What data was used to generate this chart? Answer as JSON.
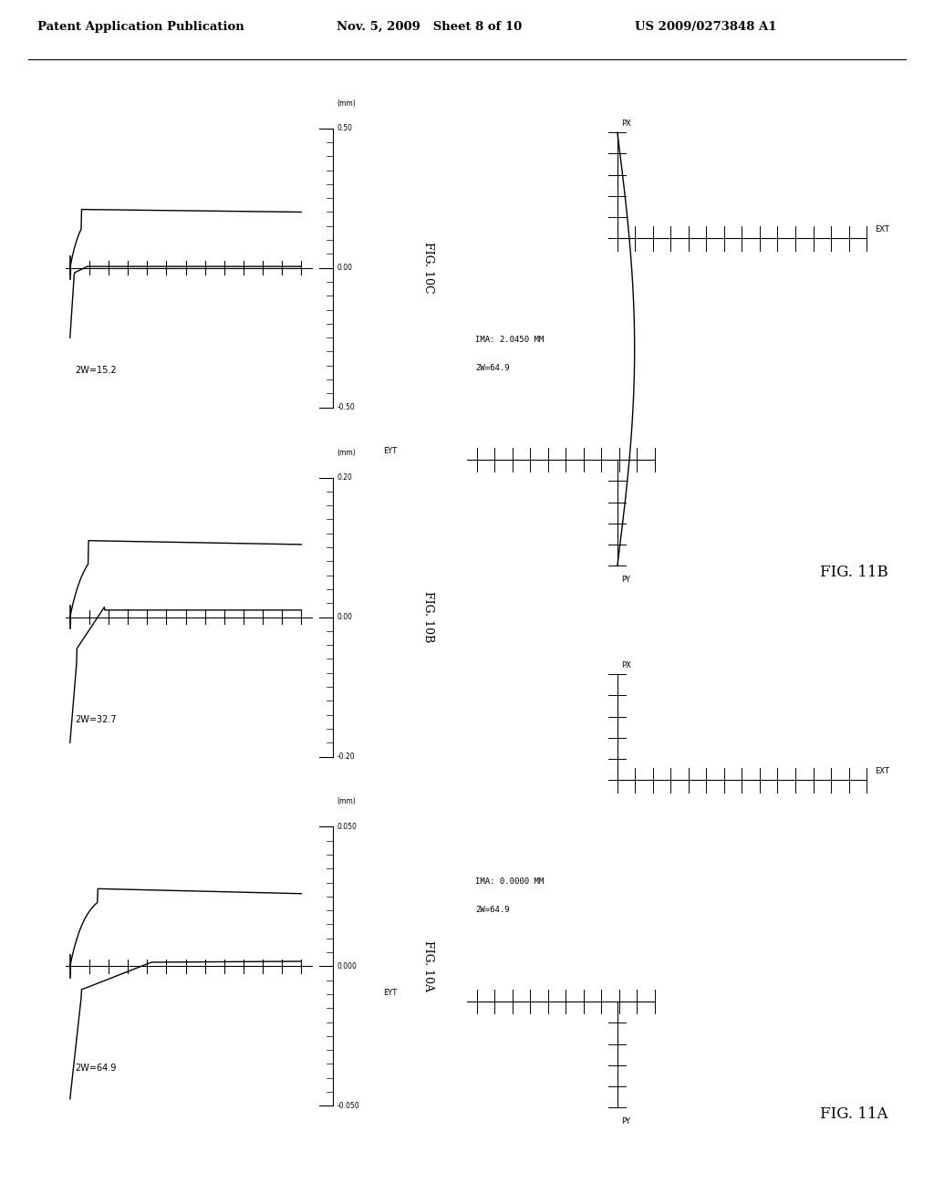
{
  "header_left": "Patent Application Publication",
  "header_mid": "Nov. 5, 2009   Sheet 8 of 10",
  "header_right": "US 2009/0273848 A1",
  "fig10A_label": "2W=64.9",
  "fig10B_label": "2W=32.7",
  "fig10C_label": "2W=15.2",
  "fig10A_title": "FIG. 10A",
  "fig10B_title": "FIG. 10B",
  "fig10C_title": "FIG. 10C",
  "fig11A_title": "FIG. 11A",
  "fig11B_title": "FIG. 11B",
  "fig10A_ytop": "0.050",
  "fig10A_ymid": "0.000",
  "fig10A_ybot": "-0.050",
  "fig10B_ytop": "0.20",
  "fig10B_ymid": "0.00",
  "fig10B_ybot": "-0.20",
  "fig10C_ytop": "0.50",
  "fig10C_ymid": "0.00",
  "fig10C_ybot": "-0.50",
  "fig11A_ima": "IMA: 0.0000 MM",
  "fig11A_2w": "2W=64.9",
  "fig11B_ima": "IMA: 2.0450 MM",
  "fig11B_2w": "2W=64.9",
  "bg_color": "#ffffff",
  "line_color": "#000000"
}
